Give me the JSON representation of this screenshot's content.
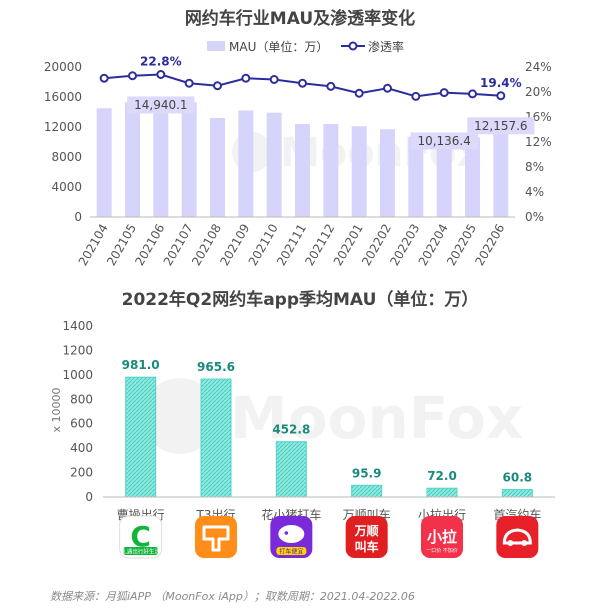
{
  "chart_data": [
    {
      "type": "bar",
      "title": "网约车行业MAU及渗透率变化",
      "categories": [
        "202104",
        "202105",
        "202106",
        "202107",
        "202108",
        "202109",
        "202110",
        "202111",
        "202112",
        "202201",
        "202202",
        "202203",
        "202204",
        "202205",
        "202206"
      ],
      "series": [
        {
          "name": "MAU（单位：万）",
          "type": "bar",
          "axis": "left",
          "values": [
            14500,
            15300,
            14940.1,
            15300,
            13200,
            14200,
            13900,
            12400,
            12400,
            12100,
            11700,
            10700,
            10136.4,
            10600,
            12157.6
          ],
          "color": "#d7d4fb"
        },
        {
          "name": "渗透率",
          "type": "line",
          "axis": "right",
          "values": [
            22.2,
            22.6,
            22.8,
            21.4,
            21.0,
            22.2,
            22.0,
            21.4,
            20.9,
            19.8,
            20.6,
            19.3,
            19.9,
            19.7,
            19.4
          ],
          "color": "#2c2d9c"
        }
      ],
      "data_labels": [
        {
          "series": 0,
          "index": 2,
          "text": "14,940.1"
        },
        {
          "series": 0,
          "index": 12,
          "text": "10,136.4"
        },
        {
          "series": 0,
          "index": 14,
          "text": "12,157.6"
        },
        {
          "series": 1,
          "index": 2,
          "text": "22.8%"
        },
        {
          "series": 1,
          "index": 14,
          "text": "19.4%"
        }
      ],
      "y_left": {
        "ticks": [
          "0",
          "4000",
          "8000",
          "12000",
          "16000",
          "20000"
        ],
        "lim": [
          0,
          20000
        ]
      },
      "y_right": {
        "ticks": [
          "0%",
          "4%",
          "8%",
          "12%",
          "16%",
          "20%",
          "24%"
        ],
        "lim": [
          0,
          24
        ]
      },
      "legend_position": "top",
      "watermark": "MoonFox"
    },
    {
      "type": "bar",
      "title": "2022年Q2网约车app季均MAU（单位：万）",
      "ylabel": "x 10000",
      "categories": [
        "曹操出行",
        "T3出行",
        "花小猪打车",
        "万顺叫车",
        "小拉出行",
        "首汽约车"
      ],
      "values": [
        981.0,
        965.6,
        452.8,
        95.9,
        72.0,
        60.8
      ],
      "value_labels": [
        "981.0",
        "965.6",
        "452.8",
        "95.9",
        "72.0",
        "60.8"
      ],
      "y_ticks": [
        "0",
        "200",
        "400",
        "600",
        "800",
        "1000",
        "1200",
        "1400"
      ],
      "ylim": [
        0,
        1400
      ],
      "bar_color": "#4fd6c8",
      "label_color": "#1a8a7c",
      "watermark": "MoonFox",
      "app_icons": [
        {
          "name": "caocao-app-icon",
          "bg": "#ffffff",
          "fg": "#12b53c",
          "glyph": "C",
          "caption": "礼遇出行好生活"
        },
        {
          "name": "t3-app-icon",
          "bg": "#ff8d1a",
          "fg": "#ffffff"
        },
        {
          "name": "huaxiaozhu-app-icon",
          "bg": "#7a2ad8",
          "fg": "#ffffff",
          "caption": "打车便宜"
        },
        {
          "name": "wanshun-app-icon",
          "bg": "#e02020",
          "fg": "#ffffff",
          "glyph": "万顺叫车"
        },
        {
          "name": "xiaola-app-icon",
          "bg": "#f2324a",
          "fg": "#ffffff",
          "glyph": "小拉",
          "caption": "一口价 不加价"
        },
        {
          "name": "shouqi-app-icon",
          "bg": "#e8202a",
          "fg": "#ffffff"
        }
      ]
    }
  ],
  "footer": {
    "source": "数据来源：月狐iAPP （MoonFox iApp）；取数周期：2021.04-2022.06"
  }
}
